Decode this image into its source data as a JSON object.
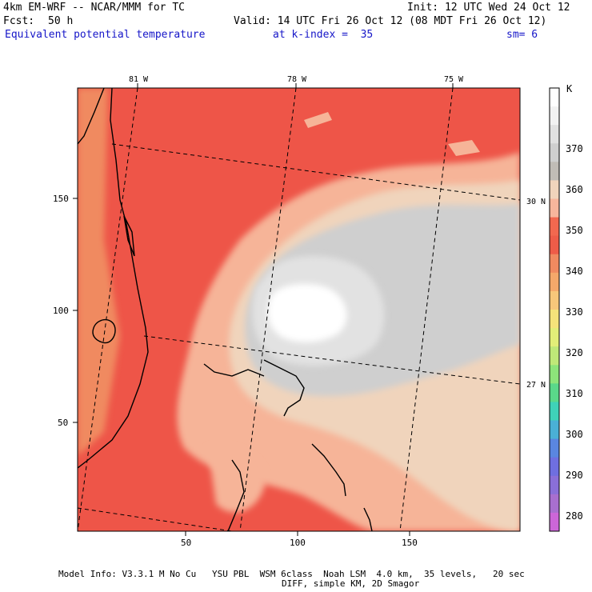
{
  "header": {
    "model": "4km EM-WRF -- NCAR/MMM for TC",
    "init": "Init: 12 UTC Wed 24 Oct 12",
    "fcst_label": "Fcst:",
    "fcst_value": "50 h",
    "valid": "Valid: 14 UTC Fri 26 Oct 12 (08 MDT Fri 26 Oct 12)",
    "field": "Equivalent potential temperature",
    "kindex": "at k-index =  35",
    "smooth": "sm= 6"
  },
  "map": {
    "lon_labels": [
      "81 W",
      "78 W",
      "75 W"
    ],
    "lat_labels": [
      "30 N",
      "27 N"
    ],
    "x_ticks": [
      "50",
      "100",
      "150"
    ],
    "y_ticks": [
      "150",
      "100",
      "50"
    ]
  },
  "colorbar": {
    "unit": "K",
    "labels": [
      "370",
      "360",
      "350",
      "340",
      "330",
      "320",
      "310",
      "300",
      "290",
      "280"
    ],
    "colors": [
      "#ffffff",
      "#f2f2f2",
      "#e1e1e1",
      "#cfcfcf",
      "#c0bcb6",
      "#f0d4bc",
      "#f7b69c",
      "#f2684f",
      "#ee5c48",
      "#f08a60",
      "#f5a86a",
      "#f7c77a",
      "#f5e37a",
      "#e2ee78",
      "#bfe878",
      "#8de47a",
      "#5ad88a",
      "#3fd2b8",
      "#4ab0d6",
      "#5a86e0",
      "#6f6fe0",
      "#8a6fd8",
      "#a86fcf",
      "#cc66d8"
    ]
  },
  "footer": {
    "line1": "Model Info: V3.3.1 M No Cu   YSU PBL  WSM 6class  Noah LSM  4.0 km,  35 levels,   20 sec",
    "line2": "DIFF, simple KM, 2D Smagor"
  }
}
